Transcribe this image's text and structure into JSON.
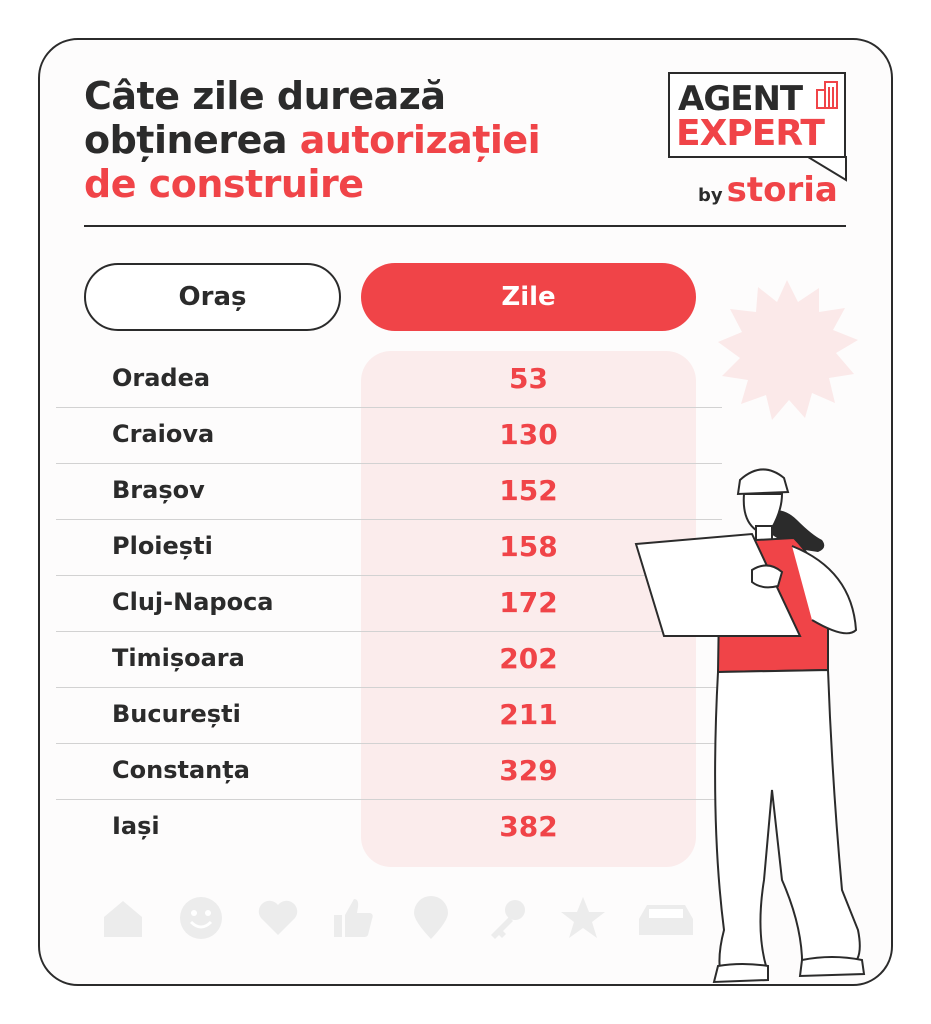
{
  "title": {
    "line1": "Câte zile durează",
    "line2_plain": "obținerea ",
    "line2_accent": "autorizației",
    "line3_accent": "de construire"
  },
  "logo": {
    "line1": "AGENT",
    "line2": "EXPERT",
    "by": "by",
    "brand": "storia"
  },
  "table": {
    "header_city": "Oraș",
    "header_days": "Zile",
    "rows": [
      {
        "city": "Oradea",
        "days": "53"
      },
      {
        "city": "Craiova",
        "days": "130"
      },
      {
        "city": "Brașov",
        "days": "152"
      },
      {
        "city": "Ploiești",
        "days": "158"
      },
      {
        "city": "Cluj-Napoca",
        "days": "172"
      },
      {
        "city": "Timișoara",
        "days": "202"
      },
      {
        "city": "București",
        "days": "211"
      },
      {
        "city": "Constanța",
        "days": "329"
      },
      {
        "city": "Iași",
        "days": "382"
      }
    ]
  },
  "icons": [
    "house-icon",
    "smiley-icon",
    "heart-icon",
    "thumbs-up-icon",
    "location-pin-icon",
    "key-icon",
    "star-icon",
    "car-icon"
  ],
  "colors": {
    "accent": "#f04448",
    "text": "#2b2b2b",
    "column_bg": "#fbecec",
    "icon_gray": "#ececec"
  }
}
